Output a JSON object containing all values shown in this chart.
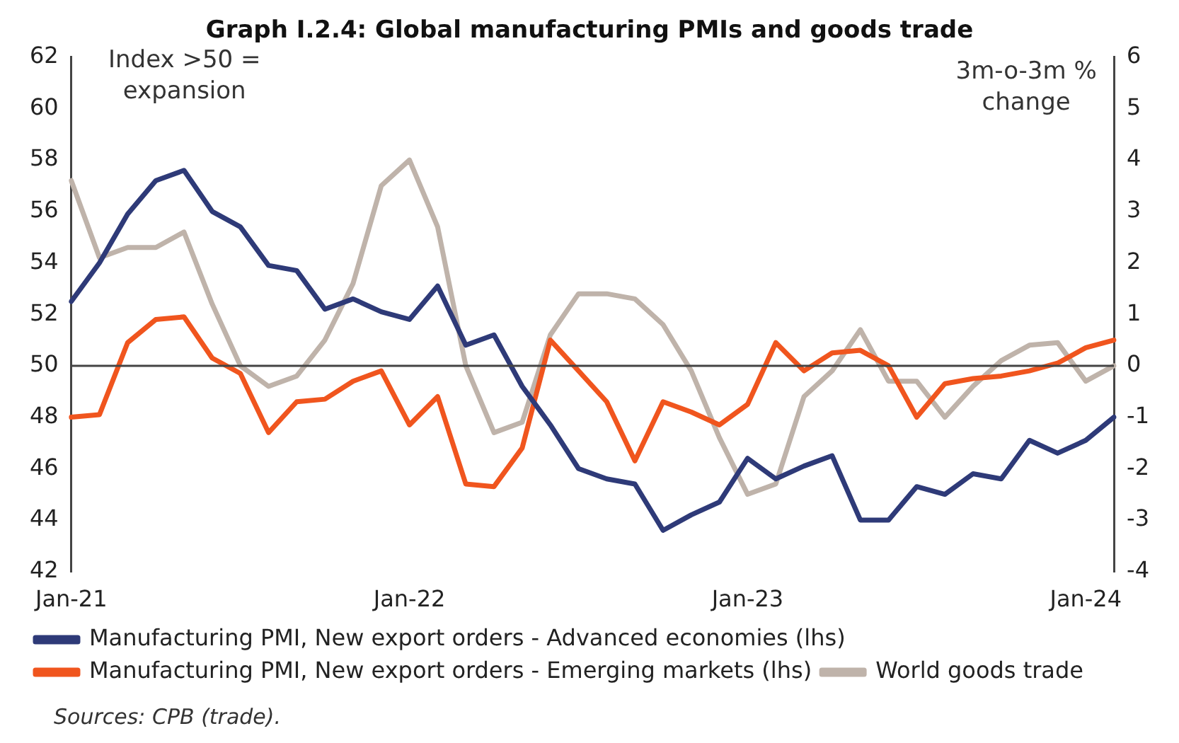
{
  "chart_data": {
    "type": "line",
    "title": "Graph I.2.4: Global manufacturing PMIs and goods trade",
    "ylabel": "Index >50 = expansion",
    "y2label": "3m-o-3m % change",
    "categories": [
      "Jan-21",
      null,
      null,
      null,
      null,
      null,
      null,
      null,
      null,
      null,
      null,
      null,
      "Jan-22",
      null,
      null,
      null,
      null,
      null,
      null,
      null,
      null,
      null,
      null,
      null,
      "Jan-23",
      null,
      null,
      null,
      null,
      null,
      null,
      null,
      null,
      null,
      null,
      null,
      "Jan-24",
      null
    ],
    "series": [
      {
        "name": "Manufacturing PMI, New export orders - Advanced economies (lhs)",
        "color": "#2e3a78",
        "values": [
          52.5,
          54.0,
          55.9,
          57.2,
          57.6,
          56.0,
          55.4,
          53.9,
          53.7,
          52.2,
          52.6,
          52.1,
          51.8,
          53.1,
          50.8,
          51.2,
          49.2,
          47.7,
          46.0,
          45.6,
          45.4,
          43.6,
          44.2,
          44.7,
          46.4,
          45.6,
          46.1,
          46.5,
          44.0,
          44.0,
          45.3,
          45.0,
          45.8,
          45.6,
          47.1,
          46.6,
          47.1,
          48.0
        ]
      },
      {
        "name": "Manufacturing PMI, New export orders - Emerging markets (lhs)",
        "color": "#f0551e",
        "values": [
          48.0,
          48.1,
          50.9,
          51.8,
          51.9,
          50.3,
          49.7,
          47.4,
          48.6,
          48.7,
          49.4,
          49.8,
          47.7,
          48.8,
          45.4,
          45.3,
          46.8,
          51.0,
          49.8,
          48.6,
          46.3,
          48.6,
          48.2,
          47.7,
          48.5,
          50.9,
          49.8,
          50.5,
          50.6,
          50.0,
          48.0,
          49.3,
          49.5,
          49.6,
          49.8,
          50.1,
          50.7,
          51.0
        ]
      },
      {
        "name": "World goods trade",
        "color": "#bfb3aa",
        "axis": "y2",
        "values": [
          3.6,
          2.1,
          2.3,
          2.3,
          2.6,
          1.2,
          0.0,
          -0.4,
          -0.2,
          0.5,
          1.6,
          3.5,
          4.0,
          2.7,
          0.0,
          -1.3,
          -1.1,
          0.6,
          1.4,
          1.4,
          1.3,
          0.8,
          -0.1,
          -1.4,
          -2.5,
          -2.3,
          -0.6,
          -0.1,
          0.7,
          -0.3,
          -0.3,
          -1.0,
          -0.4,
          0.1,
          0.4,
          0.45,
          -0.3,
          0.0
        ]
      }
    ],
    "ylim": [
      42,
      62
    ],
    "yticks": [
      42,
      44,
      46,
      48,
      50,
      52,
      54,
      56,
      58,
      60,
      62
    ],
    "y2lim": [
      -4,
      6
    ],
    "y2ticks": [
      -4,
      -3,
      -2,
      -1,
      0,
      1,
      2,
      3,
      4,
      5,
      6
    ],
    "ref_lines": [
      {
        "axis": "y",
        "value": 50,
        "color": "#444444"
      }
    ],
    "grid": false,
    "legend": "bottom",
    "marker": "none",
    "line_style": "solid",
    "annotations": [
      "Sources: CPB (trade)."
    ]
  }
}
